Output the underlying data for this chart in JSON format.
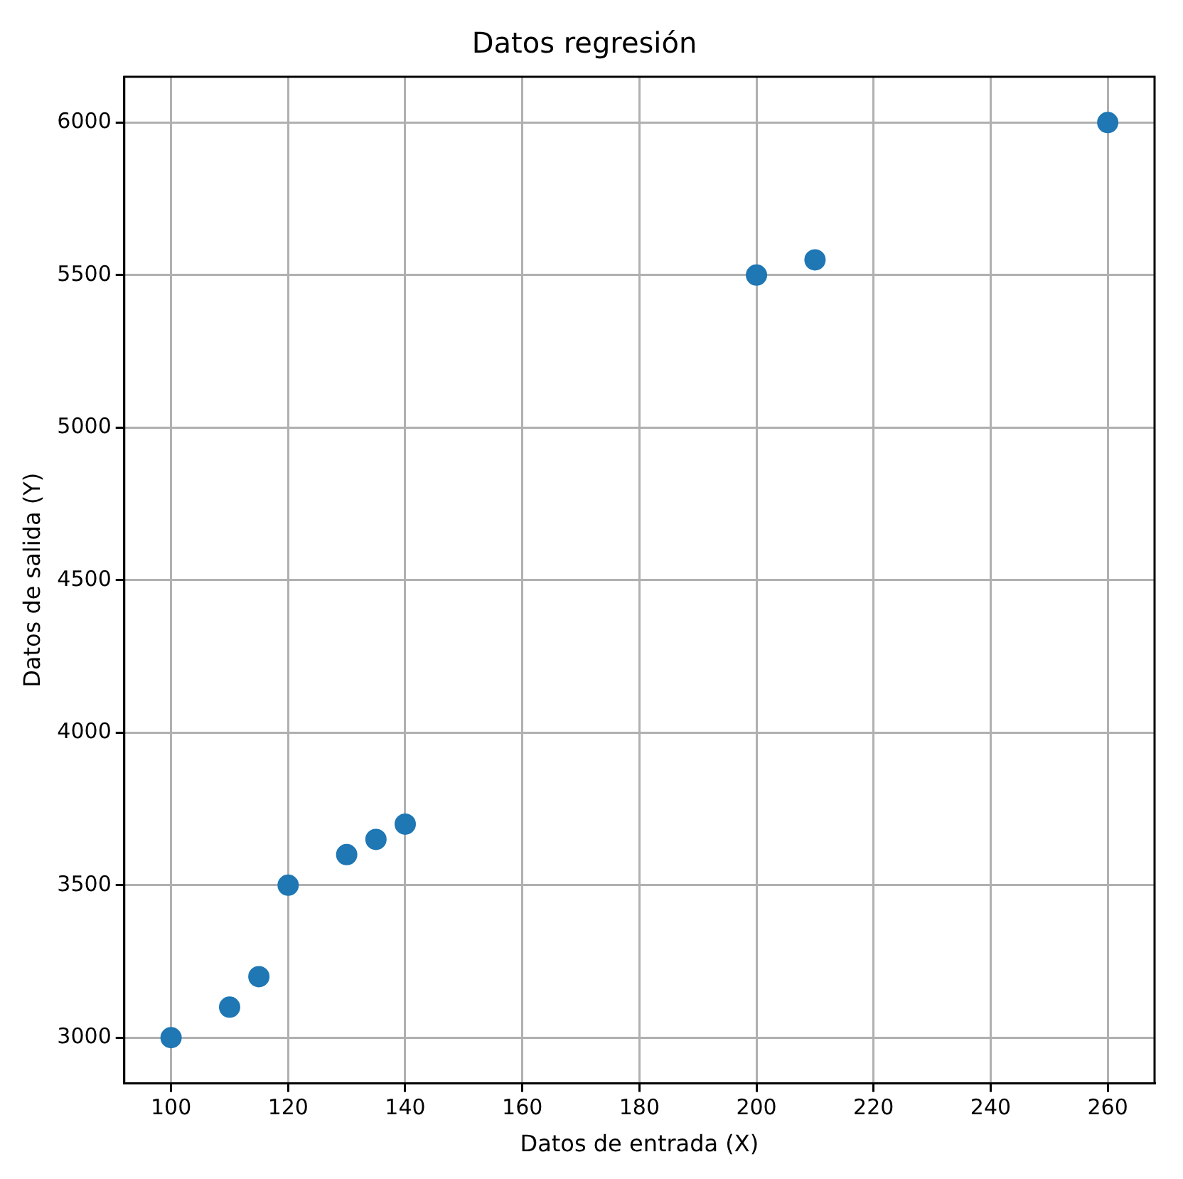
{
  "chart_data": {
    "type": "scatter",
    "title": "Datos regresión",
    "xlabel": "Datos de entrada (X)",
    "ylabel": "Datos de salida (Y)",
    "x": [
      100,
      110,
      115,
      120,
      130,
      135,
      140,
      200,
      210,
      260
    ],
    "series": [
      {
        "color": "#1f77b4",
        "values": [
          3000,
          3100,
          3200,
          3500,
          3600,
          3650,
          3700,
          5500,
          5550,
          6000
        ]
      }
    ],
    "xlim": [
      92,
      268
    ],
    "xticks": [
      100,
      120,
      140,
      160,
      180,
      200,
      220,
      240,
      260
    ],
    "ylim": [
      2850,
      6150
    ],
    "yticks": [
      3000,
      3500,
      4000,
      4500,
      5000,
      5500,
      6000
    ],
    "grid": true,
    "marker": "circle",
    "legend": false
  }
}
